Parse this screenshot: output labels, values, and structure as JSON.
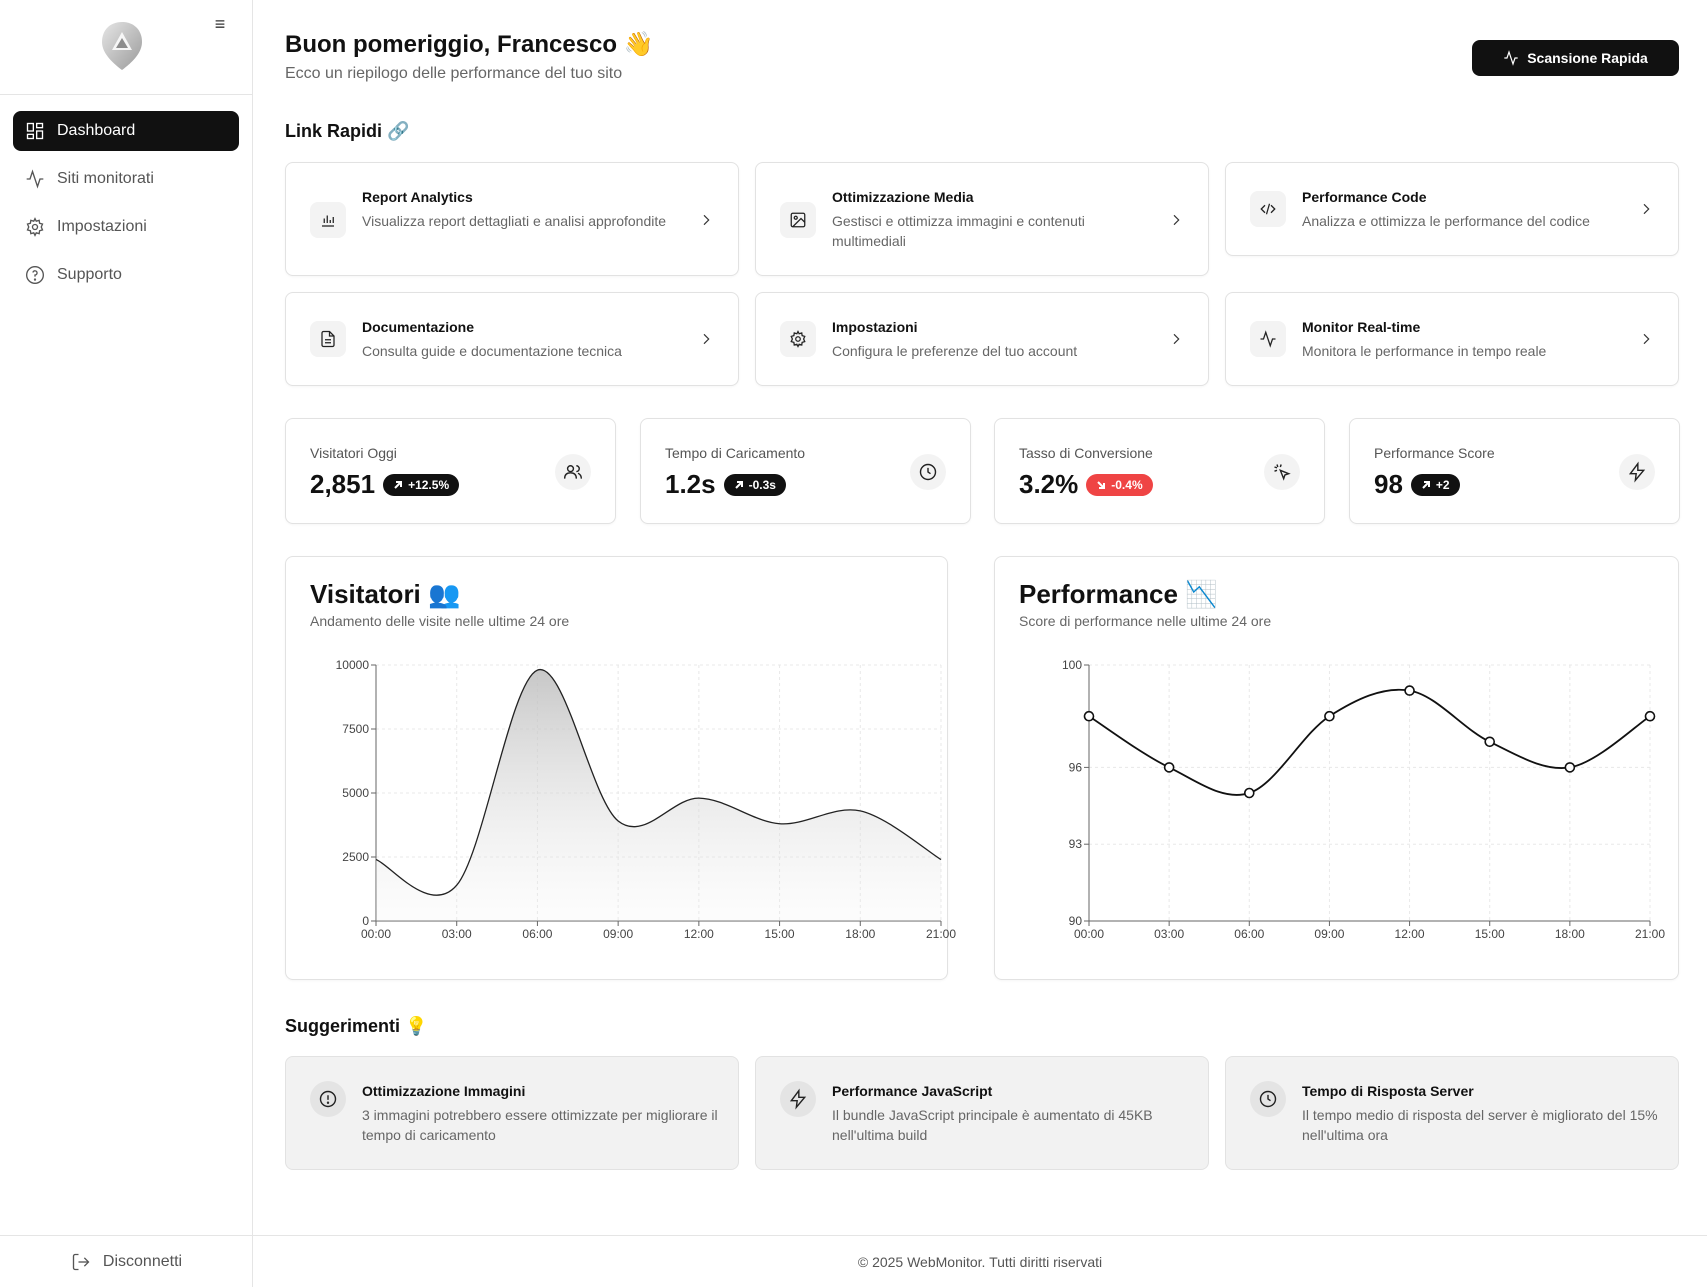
{
  "sidebar": {
    "nav": [
      {
        "label": "Dashboard",
        "icon": "dashboard-icon",
        "active": true
      },
      {
        "label": "Siti monitorati",
        "icon": "activity-icon",
        "active": false
      },
      {
        "label": "Impostazioni",
        "icon": "gear-icon",
        "active": false
      },
      {
        "label": "Supporto",
        "icon": "help-circle-icon",
        "active": false
      }
    ],
    "logout_label": "Disconnetti"
  },
  "header": {
    "title": "Buon pomeriggio, Francesco 👋",
    "subtitle": "Ecco un riepilogo delle performance del tuo sito",
    "scan_button": "Scansione Rapida"
  },
  "quick_links": {
    "title": "Link Rapidi 🔗",
    "items": [
      {
        "title": "Report Analytics",
        "desc": "Visualizza report dettagliati e analisi approfondite",
        "icon": "bar-chart-icon"
      },
      {
        "title": "Ottimizzazione Media",
        "desc": "Gestisci e ottimizza immagini e contenuti multimediali",
        "icon": "image-icon"
      },
      {
        "title": "Performance Code",
        "desc": "Analizza e ottimizza le performance del codice",
        "icon": "code-icon"
      },
      {
        "title": "Documentazione",
        "desc": "Consulta guide e documentazione tecnica",
        "icon": "document-icon"
      },
      {
        "title": "Impostazioni",
        "desc": "Configura le preferenze del tuo account",
        "icon": "gear-icon"
      },
      {
        "title": "Monitor Real-time",
        "desc": "Monitora le performance in tempo reale",
        "icon": "activity-icon"
      }
    ]
  },
  "stats": [
    {
      "label": "Visitatori Oggi",
      "value": "2,851",
      "change": "+12.5%",
      "trend": "up",
      "icon": "users-icon"
    },
    {
      "label": "Tempo di Caricamento",
      "value": "1.2s",
      "change": "-0.3s",
      "trend": "up",
      "icon": "clock-icon"
    },
    {
      "label": "Tasso di Conversione",
      "value": "3.2%",
      "change": "-0.4%",
      "trend": "down",
      "icon": "pointer-click-icon"
    },
    {
      "label": "Performance Score",
      "value": "98",
      "change": "+2",
      "trend": "up",
      "icon": "lightning-icon"
    }
  ],
  "colors": {
    "accent": "#111111",
    "negative": "#ef4444"
  },
  "chart_data": [
    {
      "type": "area",
      "title": "Visitatori 👥",
      "subtitle": "Andamento delle visite nelle ultime 24 ore",
      "x": [
        "00:00",
        "03:00",
        "06:00",
        "09:00",
        "12:00",
        "15:00",
        "18:00",
        "21:00"
      ],
      "values": [
        2400,
        1398,
        9800,
        3908,
        4800,
        3800,
        4300,
        2400
      ],
      "ylim": [
        0,
        10000
      ],
      "yticks": [
        "0",
        "2500",
        "5000",
        "7500",
        "10000"
      ],
      "grid": true
    },
    {
      "type": "line",
      "title": "Performance 📉",
      "subtitle": "Score di performance nelle ultime 24 ore",
      "x": [
        "00:00",
        "03:00",
        "06:00",
        "09:00",
        "12:00",
        "15:00",
        "18:00",
        "21:00"
      ],
      "values": [
        98,
        96,
        95,
        98,
        99,
        97,
        96,
        98
      ],
      "ylim": [
        90,
        100
      ],
      "yticks": [
        "90",
        "93",
        "96",
        "100"
      ],
      "grid": true
    }
  ],
  "suggestions": {
    "title": "Suggerimenti 💡",
    "items": [
      {
        "title": "Ottimizzazione Immagini",
        "desc": "3 immagini potrebbero essere ottimizzate per migliorare il tempo di caricamento",
        "icon": "alert-circle-icon"
      },
      {
        "title": "Performance JavaScript",
        "desc": "Il bundle JavaScript principale è aumentato di 45KB nell'ultima build",
        "icon": "lightning-icon"
      },
      {
        "title": "Tempo di Risposta Server",
        "desc": "Il tempo medio di risposta del server è migliorato del 15% nell'ultima ora",
        "icon": "clock-icon"
      }
    ]
  },
  "footer": {
    "text": "© 2025 WebMonitor. Tutti diritti riservati"
  }
}
